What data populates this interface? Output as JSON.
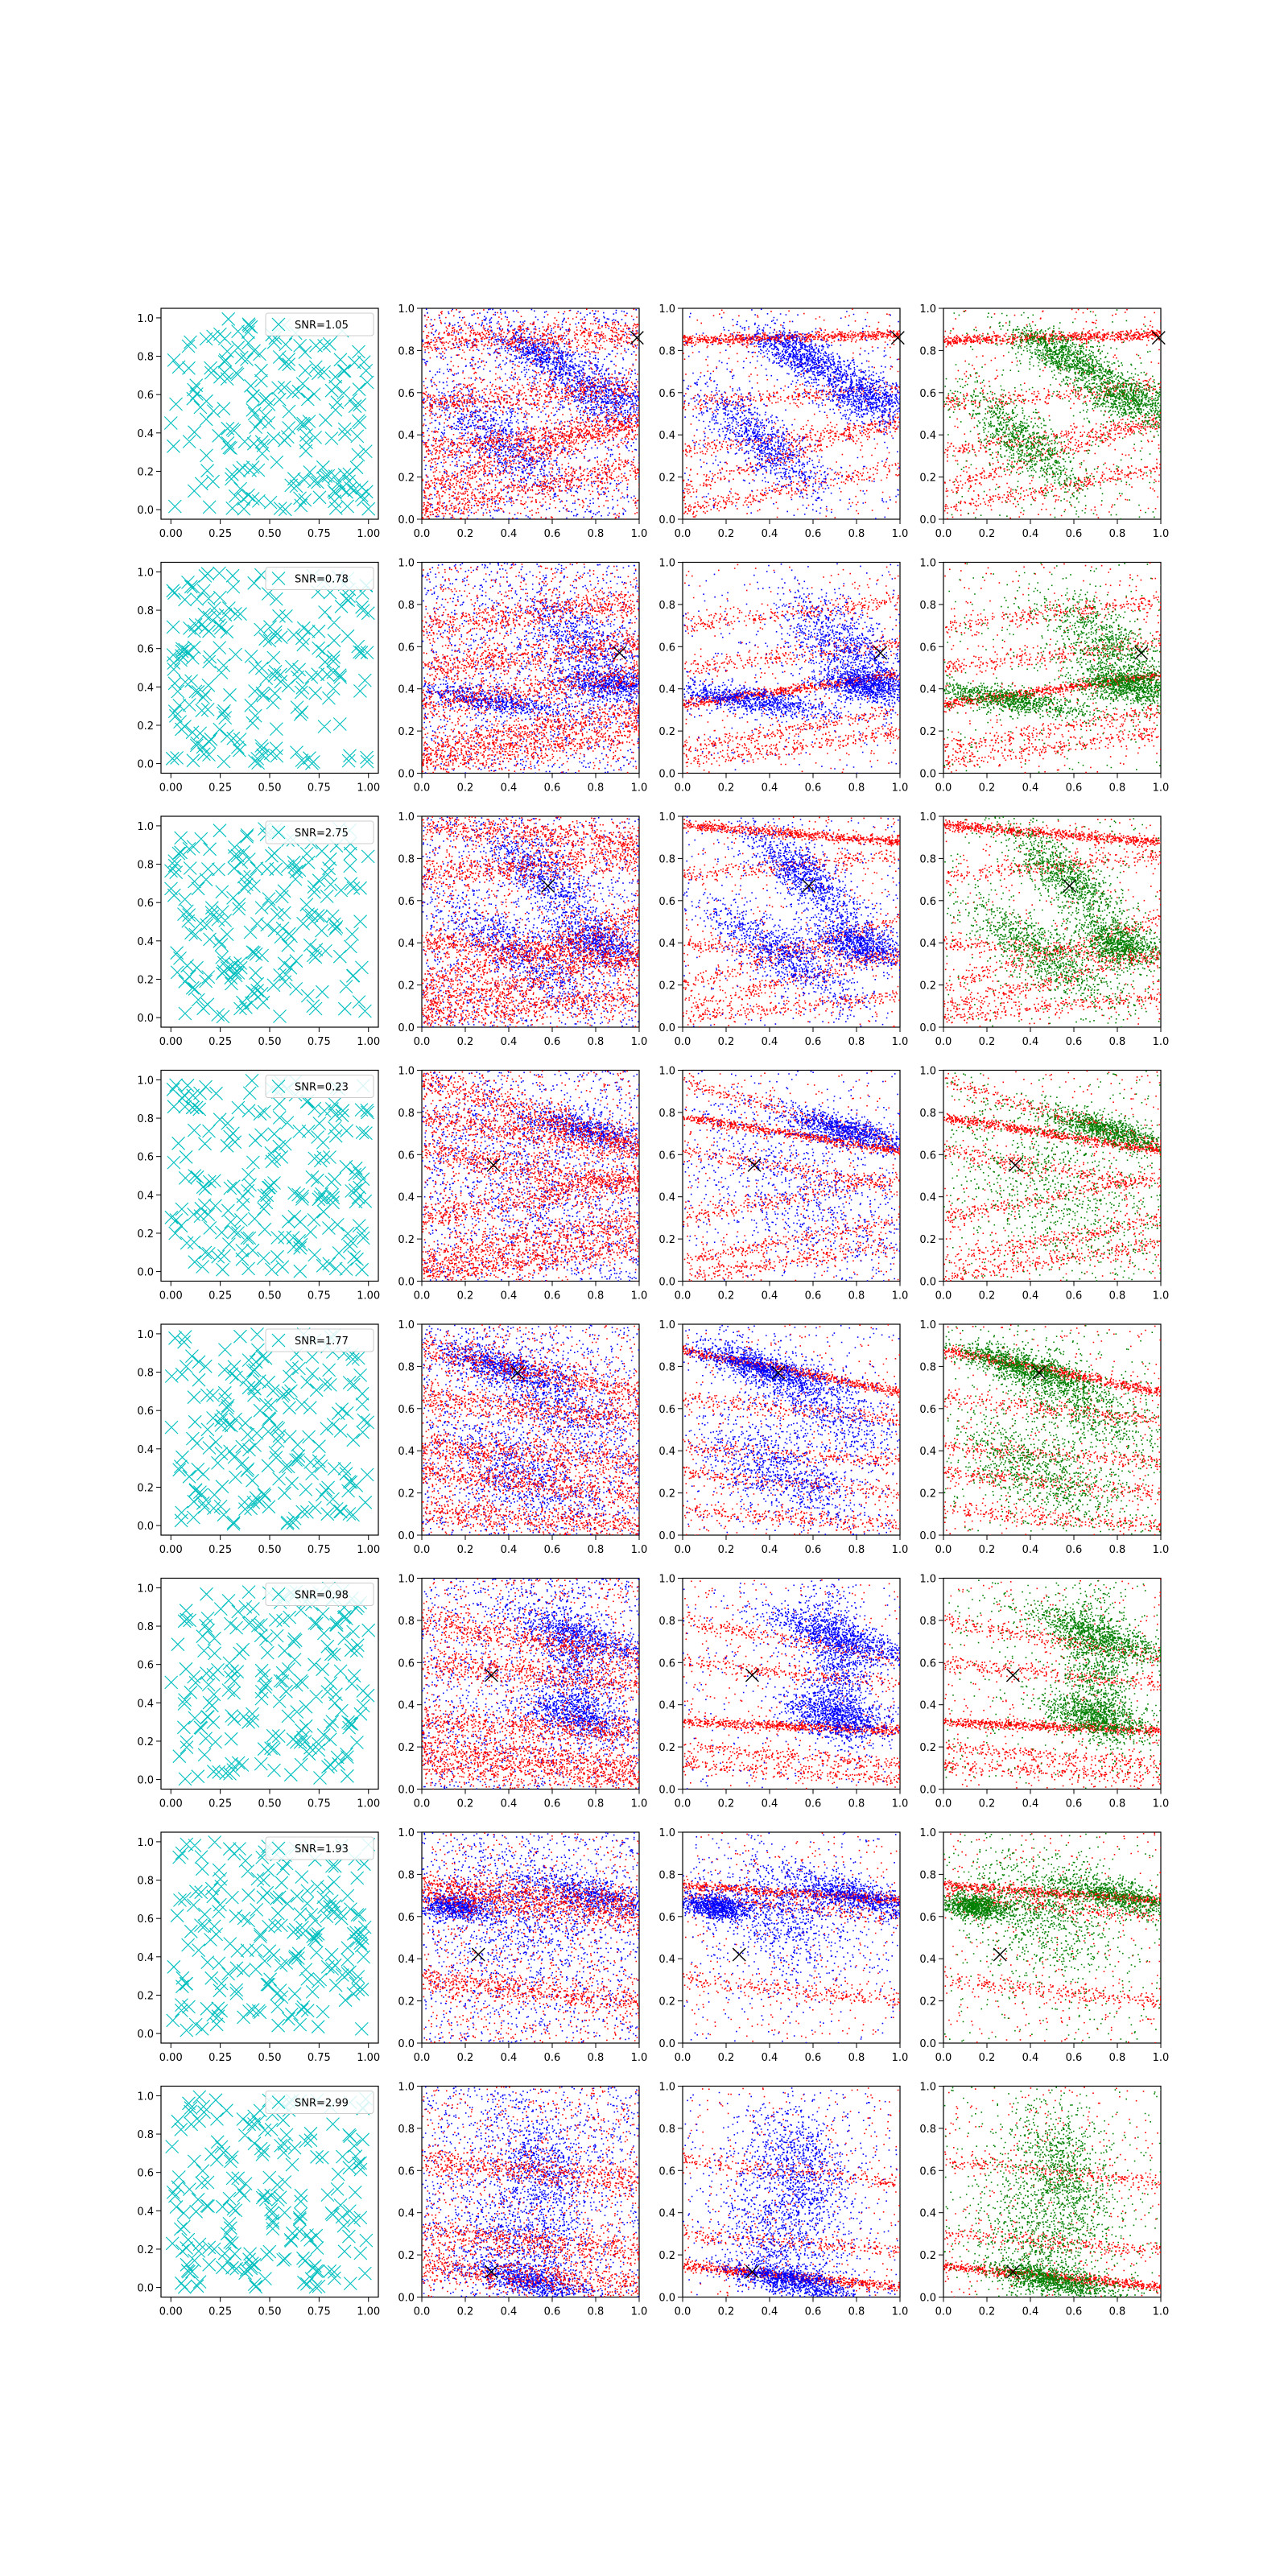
{
  "figure": {
    "layout": "8 rows x 4 columns",
    "colors": {
      "cyan": "#00bfbf",
      "red": "#ff0000",
      "blue": "#0000ff",
      "green": "#008000",
      "marker": "#000000",
      "axis": "#000000"
    }
  },
  "chart_data": [
    {
      "type": "scatter",
      "description": "Column 1: random sample of x-marker points in unit square, one per row",
      "xlim": [
        -0.05,
        1.05
      ],
      "ylim": [
        -0.05,
        1.05
      ],
      "xticks": [
        "0.00",
        "0.25",
        "0.50",
        "0.75",
        "1.00"
      ],
      "yticks": [
        "0.0",
        "0.2",
        "0.4",
        "0.6",
        "0.8",
        "1.0"
      ],
      "series_color": "cyan",
      "marker": "x",
      "points_per_panel": 200,
      "legend": [
        "SNR=1.05",
        "SNR=0.78",
        "SNR=2.75",
        "SNR=0.23",
        "SNR=1.77",
        "SNR=0.98",
        "SNR=1.93",
        "SNR=2.99"
      ],
      "legend_location": "upper right"
    },
    {
      "type": "scatter",
      "description": "Columns 2-4: dense point clouds (red / blue / green) with black x marker",
      "xlim": [
        0.0,
        1.0
      ],
      "ylim": [
        0.0,
        1.0
      ],
      "xticks": [
        "0.0",
        "0.2",
        "0.4",
        "0.6",
        "0.8",
        "1.0"
      ],
      "yticks": [
        "0.0",
        "0.2",
        "0.4",
        "0.6",
        "0.8",
        "1.0"
      ],
      "columns": [
        {
          "name": "column-2",
          "series": [
            "red",
            "blue"
          ]
        },
        {
          "name": "column-3",
          "series": [
            "red",
            "blue"
          ]
        },
        {
          "name": "column-4",
          "series": [
            "red",
            "green"
          ]
        }
      ],
      "rows": [
        {
          "marker": [
            0.99,
            0.86
          ],
          "bands": [
            [
              0.85,
              0.88
            ],
            [
              0.55,
              0.63
            ],
            [
              0.33,
              0.45
            ],
            [
              0.15,
              0.48
            ],
            [
              0.05,
              0.25
            ]
          ],
          "blobs": [
            [
              0.55,
              0.78,
              0.12,
              0.05,
              "-0.4"
            ],
            [
              0.35,
              0.38,
              0.15,
              0.08,
              "-0.7"
            ],
            [
              0.85,
              0.58,
              0.12,
              0.06,
              "-0.3"
            ]
          ]
        },
        {
          "marker": [
            0.91,
            0.57
          ],
          "bands": [
            [
              0.33,
              0.47
            ],
            [
              0.12,
              0.3
            ],
            [
              0.5,
              0.62
            ],
            [
              0.7,
              0.82
            ],
            [
              0.05,
              0.2
            ]
          ],
          "blobs": [
            [
              0.3,
              0.35,
              0.2,
              0.03,
              "-0.15"
            ],
            [
              0.75,
              0.6,
              0.15,
              0.1,
              "-0.6"
            ],
            [
              0.85,
              0.42,
              0.12,
              0.04,
              "-0.1"
            ]
          ]
        },
        {
          "marker": [
            0.58,
            0.67
          ],
          "bands": [
            [
              0.96,
              0.88
            ],
            [
              0.4,
              0.33
            ],
            [
              0.72,
              0.82
            ],
            [
              0.2,
              0.52
            ],
            [
              0.1,
              0.35
            ],
            [
              0.05,
              0.15
            ]
          ],
          "blobs": [
            [
              0.55,
              0.72,
              0.14,
              0.07,
              "-0.7"
            ],
            [
              0.45,
              0.35,
              0.18,
              0.07,
              "-0.6"
            ],
            [
              0.8,
              0.4,
              0.1,
              0.05,
              "-0.2"
            ]
          ]
        },
        {
          "marker": [
            0.33,
            0.55
          ],
          "bands": [
            [
              0.78,
              0.62
            ],
            [
              0.62,
              0.45
            ],
            [
              0.95,
              0.65
            ],
            [
              0.3,
              0.5
            ],
            [
              0.1,
              0.3
            ],
            [
              0.02,
              0.18
            ]
          ],
          "blobs": [
            [
              0.75,
              0.72,
              0.15,
              0.035,
              "-0.25"
            ],
            [
              0.55,
              0.45,
              0.3,
              0.2,
              "-0.4"
            ]
          ]
        },
        {
          "marker": [
            0.44,
            0.77
          ],
          "bands": [
            [
              0.88,
              0.68
            ],
            [
              0.65,
              0.55
            ],
            [
              0.42,
              0.35
            ],
            [
              0.3,
              0.2
            ],
            [
              0.12,
              0.05
            ]
          ],
          "blobs": [
            [
              0.35,
              0.8,
              0.15,
              0.035,
              "-0.3"
            ],
            [
              0.6,
              0.65,
              0.2,
              0.1,
              "-0.5"
            ],
            [
              0.45,
              0.3,
              0.2,
              0.1,
              "-0.4"
            ]
          ]
        },
        {
          "marker": [
            0.32,
            0.54
          ],
          "bands": [
            [
              0.32,
              0.28
            ],
            [
              0.6,
              0.5
            ],
            [
              0.12,
              0.05
            ],
            [
              0.8,
              0.62
            ],
            [
              0.2,
              0.12
            ]
          ],
          "blobs": [
            [
              0.7,
              0.6,
              0.09,
              0.18,
              "-0.8"
            ],
            [
              0.75,
              0.72,
              0.2,
              0.04,
              "-0.3"
            ],
            [
              0.7,
              0.35,
              0.12,
              0.05,
              "-0.2"
            ]
          ]
        },
        {
          "marker": [
            0.26,
            0.42
          ],
          "bands": [
            [
              0.75,
              0.68
            ],
            [
              0.7,
              0.6
            ],
            [
              0.3,
              0.2
            ]
          ],
          "blobs": [
            [
              0.45,
              0.62,
              0.18,
              0.15,
              "-0.3"
            ],
            [
              0.15,
              0.65,
              0.08,
              0.03,
              "-0.1"
            ],
            [
              0.8,
              0.7,
              0.15,
              0.04,
              "-0.25"
            ]
          ]
        },
        {
          "marker": [
            0.32,
            0.12
          ],
          "bands": [
            [
              0.15,
              0.05
            ],
            [
              0.3,
              0.22
            ],
            [
              0.65,
              0.55
            ]
          ],
          "blobs": [
            [
              0.45,
              0.25,
              0.15,
              0.18,
              "-0.4"
            ],
            [
              0.5,
              0.08,
              0.15,
              0.03,
              "-0.2"
            ],
            [
              0.55,
              0.6,
              0.12,
              0.15,
              "-0.5"
            ]
          ]
        }
      ]
    }
  ]
}
